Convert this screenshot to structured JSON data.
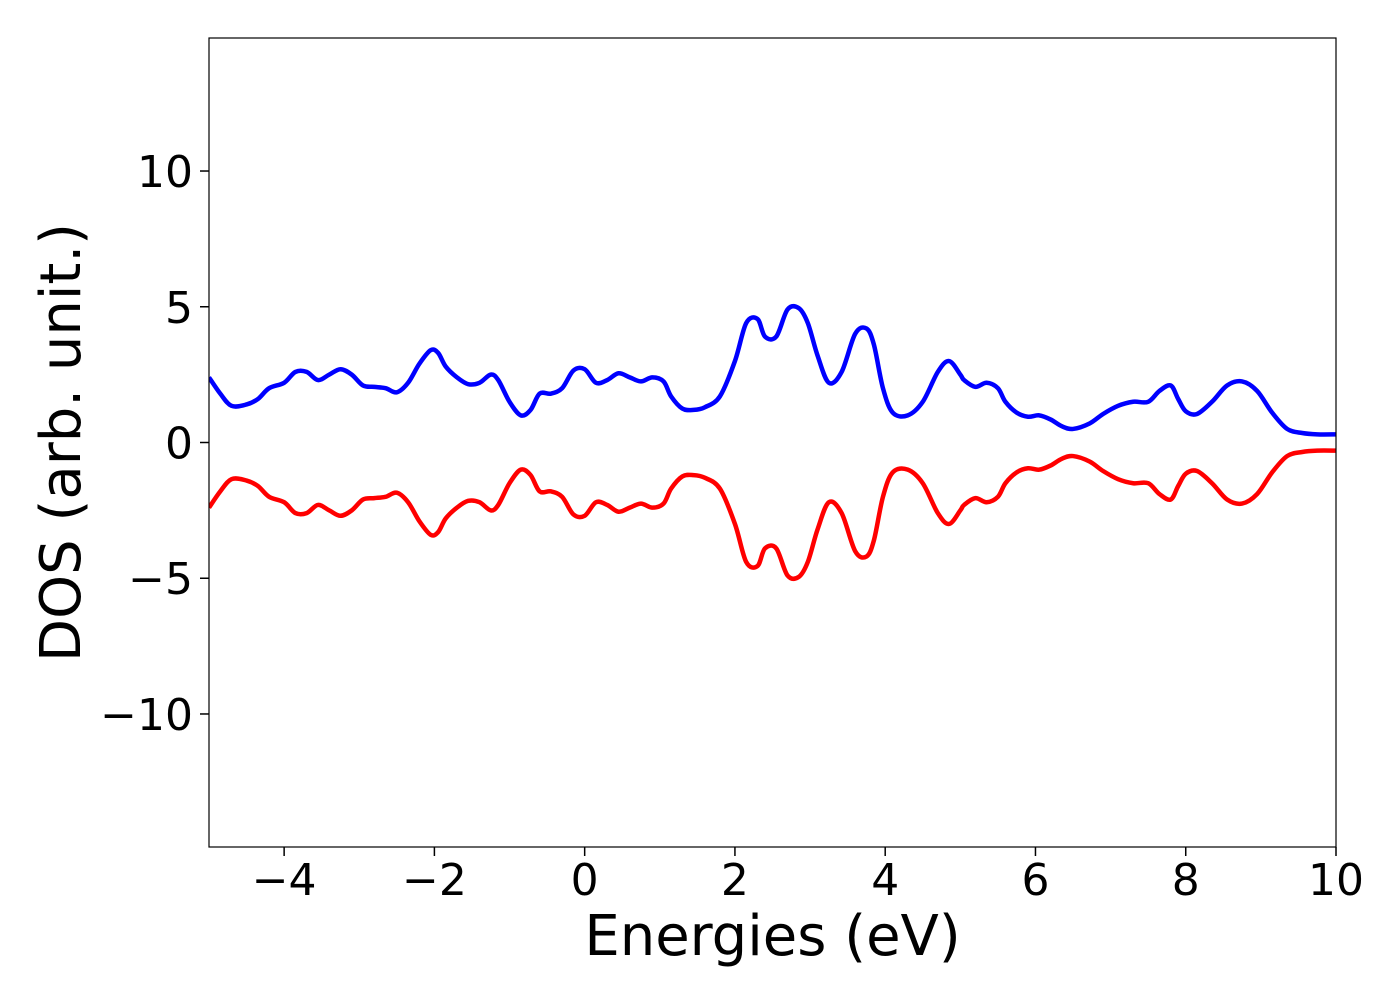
{
  "chart_data": {
    "type": "line",
    "title": "",
    "xlabel": "Energies (eV)",
    "ylabel": "DOS (arb. unit.)",
    "xlim": [
      -5,
      10
    ],
    "ylim": [
      -14.9,
      14.9
    ],
    "x_ticks": [
      -4,
      -2,
      0,
      2,
      4,
      6,
      8,
      10
    ],
    "x_tick_labels": [
      "−4",
      "−2",
      "0",
      "2",
      "4",
      "6",
      "8",
      "10"
    ],
    "y_ticks": [
      -10,
      -5,
      0,
      5,
      10
    ],
    "y_tick_labels": [
      "−10",
      "−5",
      "0",
      "5",
      "10"
    ],
    "grid": false,
    "legend": "none",
    "series": [
      {
        "color": "#0000ff",
        "x": [
          -5.0,
          -4.85,
          -4.7,
          -4.5,
          -4.35,
          -4.2,
          -4.0,
          -3.85,
          -3.7,
          -3.55,
          -3.4,
          -3.25,
          -3.1,
          -2.95,
          -2.8,
          -2.65,
          -2.5,
          -2.35,
          -2.2,
          -2.05,
          -1.95,
          -1.85,
          -1.7,
          -1.55,
          -1.4,
          -1.25,
          -1.15,
          -1.0,
          -0.85,
          -0.72,
          -0.6,
          -0.45,
          -0.3,
          -0.15,
          0.0,
          0.15,
          0.3,
          0.45,
          0.6,
          0.75,
          0.9,
          1.05,
          1.15,
          1.3,
          1.45,
          1.6,
          1.8,
          2.0,
          2.15,
          2.3,
          2.4,
          2.55,
          2.7,
          2.85,
          2.97,
          3.1,
          3.25,
          3.42,
          3.6,
          3.75,
          3.85,
          3.97,
          4.1,
          4.3,
          4.5,
          4.7,
          4.85,
          5.0,
          5.05,
          5.2,
          5.35,
          5.5,
          5.6,
          5.75,
          5.9,
          6.05,
          6.2,
          6.35,
          6.5,
          6.72,
          6.9,
          7.1,
          7.3,
          7.5,
          7.65,
          7.8,
          7.9,
          8.0,
          8.15,
          8.35,
          8.55,
          8.75,
          8.95,
          9.15,
          9.35,
          9.55,
          9.75,
          10.0
        ],
        "y": [
          2.4,
          1.8,
          1.35,
          1.4,
          1.6,
          2.0,
          2.2,
          2.6,
          2.6,
          2.3,
          2.5,
          2.7,
          2.5,
          2.1,
          2.05,
          2.0,
          1.85,
          2.2,
          2.9,
          3.4,
          3.3,
          2.8,
          2.4,
          2.15,
          2.2,
          2.5,
          2.3,
          1.5,
          1.0,
          1.2,
          1.8,
          1.8,
          2.0,
          2.65,
          2.7,
          2.2,
          2.3,
          2.55,
          2.4,
          2.25,
          2.4,
          2.25,
          1.7,
          1.25,
          1.2,
          1.3,
          1.7,
          3.0,
          4.4,
          4.55,
          3.9,
          3.9,
          4.9,
          4.95,
          4.4,
          3.2,
          2.2,
          2.6,
          4.0,
          4.2,
          3.6,
          2.0,
          1.1,
          1.0,
          1.5,
          2.6,
          3.0,
          2.5,
          2.3,
          2.05,
          2.2,
          2.0,
          1.5,
          1.1,
          0.95,
          1.0,
          0.85,
          0.6,
          0.5,
          0.7,
          1.05,
          1.35,
          1.5,
          1.5,
          1.9,
          2.1,
          1.6,
          1.15,
          1.05,
          1.5,
          2.1,
          2.25,
          1.9,
          1.1,
          0.5,
          0.35,
          0.3,
          0.3
        ]
      },
      {
        "color": "#ff0000",
        "x": [
          -5.0,
          -4.85,
          -4.7,
          -4.5,
          -4.35,
          -4.2,
          -4.0,
          -3.85,
          -3.7,
          -3.55,
          -3.4,
          -3.25,
          -3.1,
          -2.95,
          -2.8,
          -2.65,
          -2.5,
          -2.35,
          -2.2,
          -2.05,
          -1.95,
          -1.85,
          -1.7,
          -1.55,
          -1.4,
          -1.25,
          -1.15,
          -1.0,
          -0.85,
          -0.72,
          -0.6,
          -0.45,
          -0.3,
          -0.15,
          0.0,
          0.15,
          0.3,
          0.45,
          0.6,
          0.75,
          0.9,
          1.05,
          1.15,
          1.3,
          1.45,
          1.6,
          1.8,
          2.0,
          2.15,
          2.3,
          2.4,
          2.55,
          2.7,
          2.85,
          2.97,
          3.1,
          3.25,
          3.42,
          3.6,
          3.75,
          3.85,
          3.97,
          4.1,
          4.3,
          4.5,
          4.7,
          4.85,
          5.0,
          5.05,
          5.2,
          5.35,
          5.5,
          5.6,
          5.75,
          5.9,
          6.05,
          6.2,
          6.35,
          6.5,
          6.72,
          6.9,
          7.1,
          7.3,
          7.5,
          7.65,
          7.8,
          7.9,
          8.0,
          8.15,
          8.35,
          8.55,
          8.75,
          8.95,
          9.15,
          9.35,
          9.55,
          9.75,
          10.0
        ],
        "y": [
          -2.4,
          -1.8,
          -1.35,
          -1.4,
          -1.6,
          -2.0,
          -2.2,
          -2.6,
          -2.6,
          -2.3,
          -2.5,
          -2.7,
          -2.5,
          -2.1,
          -2.05,
          -2.0,
          -1.85,
          -2.2,
          -2.9,
          -3.4,
          -3.3,
          -2.8,
          -2.4,
          -2.15,
          -2.2,
          -2.5,
          -2.3,
          -1.5,
          -1.0,
          -1.2,
          -1.8,
          -1.8,
          -2.0,
          -2.65,
          -2.7,
          -2.2,
          -2.3,
          -2.55,
          -2.4,
          -2.25,
          -2.4,
          -2.25,
          -1.7,
          -1.25,
          -1.2,
          -1.3,
          -1.7,
          -3.0,
          -4.4,
          -4.55,
          -3.9,
          -3.9,
          -4.9,
          -4.95,
          -4.4,
          -3.2,
          -2.2,
          -2.6,
          -4.0,
          -4.2,
          -3.6,
          -2.0,
          -1.1,
          -1.0,
          -1.5,
          -2.6,
          -3.0,
          -2.5,
          -2.3,
          -2.05,
          -2.2,
          -2.0,
          -1.5,
          -1.1,
          -0.95,
          -1.0,
          -0.85,
          -0.6,
          -0.5,
          -0.7,
          -1.05,
          -1.35,
          -1.5,
          -1.5,
          -1.9,
          -2.1,
          -1.6,
          -1.15,
          -1.05,
          -1.5,
          -2.1,
          -2.25,
          -1.9,
          -1.1,
          -0.5,
          -0.35,
          -0.3,
          -0.3
        ]
      }
    ]
  }
}
